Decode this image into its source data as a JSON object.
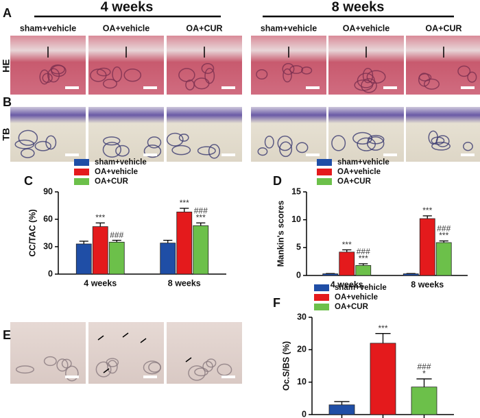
{
  "histology": {
    "panels": {
      "A": "A",
      "B": "B",
      "E": "E"
    },
    "timepoints": [
      "4 weeks",
      "8 weeks"
    ],
    "groups": [
      "sham+vehicle",
      "OA+vehicle",
      "OA+CUR"
    ],
    "stains": [
      "HE",
      "TB"
    ]
  },
  "chart_data": [
    {
      "type": "bar",
      "label": "C",
      "ylabel": "CC/TAC (%)",
      "categories": [
        "4 weeks",
        "8 weeks"
      ],
      "ylim": [
        0,
        90
      ],
      "yticks": [
        0,
        30,
        60,
        90
      ],
      "series": [
        {
          "name": "sham+vehicle",
          "color": "#1f4ea6",
          "values": [
            33,
            34
          ],
          "errors": [
            3,
            3
          ]
        },
        {
          "name": "OA+vehicle",
          "color": "#e41a1c",
          "values": [
            52,
            68
          ],
          "errors": [
            4,
            4
          ],
          "significance": [
            [
              "***"
            ],
            [
              "***"
            ]
          ]
        },
        {
          "name": "OA+CUR",
          "color": "#6cc04a",
          "values": [
            35,
            53
          ],
          "errors": [
            2,
            3
          ],
          "significance": [
            [
              "###"
            ],
            [
              "###",
              "***"
            ]
          ]
        }
      ]
    },
    {
      "type": "bar",
      "label": "D",
      "ylabel": "Mankin's scores",
      "categories": [
        "4 weeks",
        "8 weeks"
      ],
      "ylim": [
        0,
        15
      ],
      "yticks": [
        0,
        5,
        10,
        15
      ],
      "series": [
        {
          "name": "sham+vehicle",
          "color": "#1f4ea6",
          "values": [
            0.3,
            0.3
          ],
          "errors": [
            0.05,
            0.05
          ]
        },
        {
          "name": "OA+vehicle",
          "color": "#e41a1c",
          "values": [
            4.2,
            10.2
          ],
          "errors": [
            0.4,
            0.5
          ],
          "significance": [
            [
              "***"
            ],
            [
              "***"
            ]
          ]
        },
        {
          "name": "OA+CUR",
          "color": "#6cc04a",
          "values": [
            1.8,
            5.9
          ],
          "errors": [
            0.3,
            0.3
          ],
          "significance": [
            [
              "###",
              "***"
            ],
            [
              "###",
              "***"
            ]
          ]
        }
      ]
    },
    {
      "type": "bar",
      "label": "F",
      "ylabel": "Oc.S/BS (%)",
      "categories": [
        null
      ],
      "ylim": [
        0,
        30
      ],
      "yticks": [
        0,
        10,
        20,
        30
      ],
      "series": [
        {
          "name": "sham+vehicle",
          "color": "#1f4ea6",
          "values": [
            3
          ],
          "errors": [
            1
          ]
        },
        {
          "name": "OA+vehicle",
          "color": "#e41a1c",
          "values": [
            22
          ],
          "errors": [
            3
          ],
          "significance": [
            [
              "***"
            ]
          ]
        },
        {
          "name": "OA+CUR",
          "color": "#6cc04a",
          "values": [
            8.5
          ],
          "errors": [
            2.5
          ],
          "significance": [
            [
              "###",
              "*"
            ]
          ]
        }
      ]
    }
  ]
}
